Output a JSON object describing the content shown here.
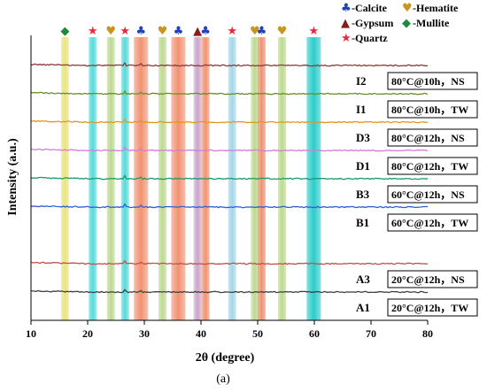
{
  "chart_data": {
    "type": "line",
    "xlabel": "2θ (degree)",
    "ylabel": "Intensity (a.u.)",
    "caption": "(a)",
    "xlim": [
      10,
      80
    ],
    "xticks": [
      10,
      20,
      30,
      40,
      50,
      60,
      70,
      80
    ],
    "grid": false,
    "legend_position": "top-right",
    "legend": [
      {
        "symbol": "♣",
        "label": "-Calcite",
        "color": "#1f3fbf"
      },
      {
        "symbol": "♥",
        "label": "-Hematite",
        "color": "#c8961e"
      },
      {
        "symbol": "▲",
        "label": "-Gypsum",
        "color": "#8b1a1a"
      },
      {
        "symbol": "◆",
        "label": "-Mullite",
        "color": "#1f8a3a"
      },
      {
        "symbol": "★",
        "label": "-Quartz",
        "color": "#e8283c"
      }
    ],
    "phase_bands": [
      {
        "x": 16.0,
        "color": "#e8e27a",
        "symbol": "◆",
        "symbol_color": "#1f8a3a"
      },
      {
        "x": 20.9,
        "color": "#4fd8d8",
        "symbol": "★",
        "symbol_color": "#e8283c"
      },
      {
        "x": 24.1,
        "color": "#b9d88a",
        "symbol": "♥",
        "symbol_color": "#c8961e"
      },
      {
        "x": 26.6,
        "color": "#4fd8d8",
        "symbol": "★",
        "symbol_color": "#e8283c"
      },
      {
        "x": 29.4,
        "color": "#f08c6a",
        "symbol": "♣",
        "symbol_color": "#1f3fbf"
      },
      {
        "x": 33.2,
        "color": "#b9d88a",
        "symbol": "♥",
        "symbol_color": "#c8961e"
      },
      {
        "x": 36.0,
        "color": "#f08c6a",
        "symbol": "♣",
        "symbol_color": "#1f3fbf"
      },
      {
        "x": 39.4,
        "color": "#c9a0c8",
        "symbol": "▲",
        "symbol_color": "#8b1a1a"
      },
      {
        "x": 40.8,
        "color": "#f08c6a",
        "symbol": "♣",
        "symbol_color": "#1f3fbf"
      },
      {
        "x": 45.5,
        "color": "#9fd4e6",
        "symbol": "★",
        "symbol_color": "#e8283c"
      },
      {
        "x": 49.5,
        "color": "#b9d88a",
        "symbol": "♥",
        "symbol_color": "#c8961e"
      },
      {
        "x": 50.7,
        "color": "#f08c6a",
        "symbol": "♣",
        "symbol_color": "#1f3fbf"
      },
      {
        "x": 54.3,
        "color": "#b9d88a",
        "symbol": "♥",
        "symbol_color": "#c8961e"
      },
      {
        "x": 59.9,
        "color": "#21c9c9",
        "symbol": "★",
        "symbol_color": "#e8283c"
      }
    ],
    "series": [
      {
        "name": "I2",
        "condition": "80°C@10h，NS",
        "color": "#8b3a3a",
        "offset": 8
      },
      {
        "name": "I1",
        "condition": "80°C@10h，TW",
        "color": "#6b8e23",
        "offset": 7
      },
      {
        "name": "D3",
        "condition": "80°C@12h，NS",
        "color": "#e69520",
        "offset": 6
      },
      {
        "name": "D1",
        "condition": "80°C@12h，TW",
        "color": "#d67ad6",
        "offset": 5
      },
      {
        "name": "B3",
        "condition": "60°C@12h，NS",
        "color": "#1a9a6a",
        "offset": 4
      },
      {
        "name": "B1",
        "condition": "60°C@12h，TW",
        "color": "#2f5fd0",
        "offset": 3
      },
      {
        "name": "A3",
        "condition": "20°C@12h，NS",
        "color": "#c0504d",
        "offset": 1
      },
      {
        "name": "A1",
        "condition": "20°C@12h，TW",
        "color": "#404040",
        "offset": 0
      }
    ]
  }
}
